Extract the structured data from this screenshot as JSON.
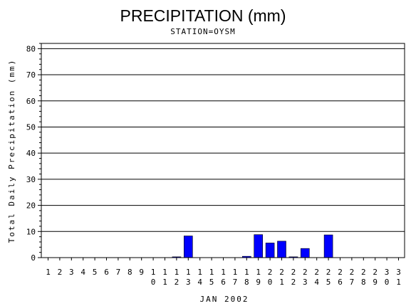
{
  "chart_data": {
    "type": "bar",
    "title": "PRECIPITATION (mm)",
    "subtitle": "STATION=OYSM",
    "xlabel": "JAN 2002",
    "ylabel": "Total Daily Precipitation (mm)",
    "categories": [
      "1",
      "2",
      "3",
      "4",
      "5",
      "6",
      "7",
      "8",
      "9",
      "10",
      "11",
      "12",
      "13",
      "14",
      "15",
      "16",
      "17",
      "18",
      "19",
      "20",
      "21",
      "22",
      "23",
      "24",
      "25",
      "26",
      "27",
      "28",
      "29",
      "30",
      "31"
    ],
    "values": [
      0,
      0,
      0,
      0,
      0,
      0,
      0,
      0,
      0,
      0,
      0,
      0.3,
      8.3,
      0,
      0,
      0,
      0,
      0.5,
      8.8,
      5.6,
      6.3,
      0.3,
      3.5,
      0,
      8.7,
      0,
      0,
      0,
      0,
      0,
      0
    ],
    "ylim": [
      0,
      82
    ],
    "yticks": [
      0,
      10,
      20,
      30,
      40,
      50,
      60,
      70,
      80
    ],
    "grid": true,
    "bar_color": "#0000ff"
  }
}
